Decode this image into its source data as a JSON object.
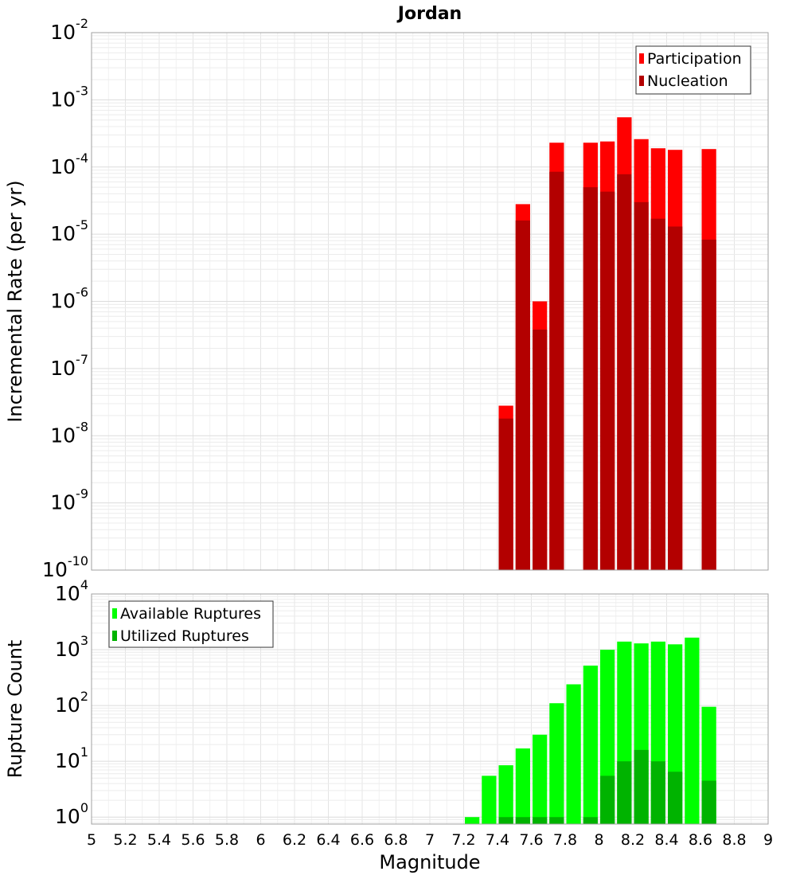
{
  "chart_data": [
    {
      "type": "bar",
      "title": "Jordan",
      "xlabel": "",
      "ylabel": "Incremental Rate (per yr)",
      "yscale": "log",
      "xlim": [
        5,
        9
      ],
      "ylim": [
        1e-10,
        0.01
      ],
      "ytick_labels": [
        {
          "base": "10",
          "exp": "-10"
        },
        {
          "base": "10",
          "exp": "-9"
        },
        {
          "base": "10",
          "exp": "-8"
        },
        {
          "base": "10",
          "exp": "-7"
        },
        {
          "base": "10",
          "exp": "-6"
        },
        {
          "base": "10",
          "exp": "-5"
        },
        {
          "base": "10",
          "exp": "-4"
        },
        {
          "base": "10",
          "exp": "-3"
        },
        {
          "base": "10",
          "exp": "-2"
        }
      ],
      "grid": true,
      "legend_position": "top-right",
      "x": [
        7.45,
        7.55,
        7.65,
        7.75,
        7.95,
        8.05,
        8.15,
        8.25,
        8.35,
        8.45,
        8.65
      ],
      "series": [
        {
          "name": "Participation",
          "color": "#ff0000",
          "values": [
            2.8e-08,
            2.8e-05,
            1e-06,
            0.00023,
            0.00023,
            0.00024,
            0.00055,
            0.00026,
            0.00019,
            0.00018,
            0.000185
          ]
        },
        {
          "name": "Nucleation",
          "color": "#b30000",
          "values": [
            1.8e-08,
            1.6e-05,
            3.8e-07,
            8.5e-05,
            5e-05,
            4.3e-05,
            7.8e-05,
            3e-05,
            1.7e-05,
            1.3e-05,
            8.3e-06
          ]
        }
      ]
    },
    {
      "type": "bar",
      "title": "",
      "xlabel": "Magnitude",
      "ylabel": "Rupture Count",
      "yscale": "log",
      "xlim": [
        5,
        9
      ],
      "ylim": [
        0.75,
        10000.0
      ],
      "ytick_labels": [
        {
          "base": "10",
          "exp": "0"
        },
        {
          "base": "10",
          "exp": "1"
        },
        {
          "base": "10",
          "exp": "2"
        },
        {
          "base": "10",
          "exp": "3"
        },
        {
          "base": "10",
          "exp": "4"
        }
      ],
      "xtick_labels": [
        "5",
        "5.2",
        "5.4",
        "5.6",
        "5.8",
        "6",
        "6.2",
        "6.4",
        "6.6",
        "6.8",
        "7",
        "7.2",
        "7.4",
        "7.6",
        "7.8",
        "8",
        "8.2",
        "8.4",
        "8.6",
        "8.8",
        "9"
      ],
      "grid": true,
      "legend_position": "top-left",
      "x": [
        7.25,
        7.35,
        7.45,
        7.55,
        7.65,
        7.75,
        7.85,
        7.95,
        8.05,
        8.15,
        8.25,
        8.35,
        8.45,
        8.55,
        8.65
      ],
      "series": [
        {
          "name": "Available Ruptures",
          "color": "#00ff00",
          "values": [
            1,
            5.5,
            8.5,
            17,
            30,
            110,
            240,
            520,
            1000,
            1400,
            1300,
            1400,
            1250,
            1650,
            95
          ]
        },
        {
          "name": "Utilized Ruptures",
          "color": "#00b300",
          "values": [
            null,
            null,
            1,
            1,
            1,
            1,
            null,
            1,
            5.5,
            10,
            16,
            10,
            6.5,
            null,
            4.5
          ]
        }
      ]
    }
  ]
}
